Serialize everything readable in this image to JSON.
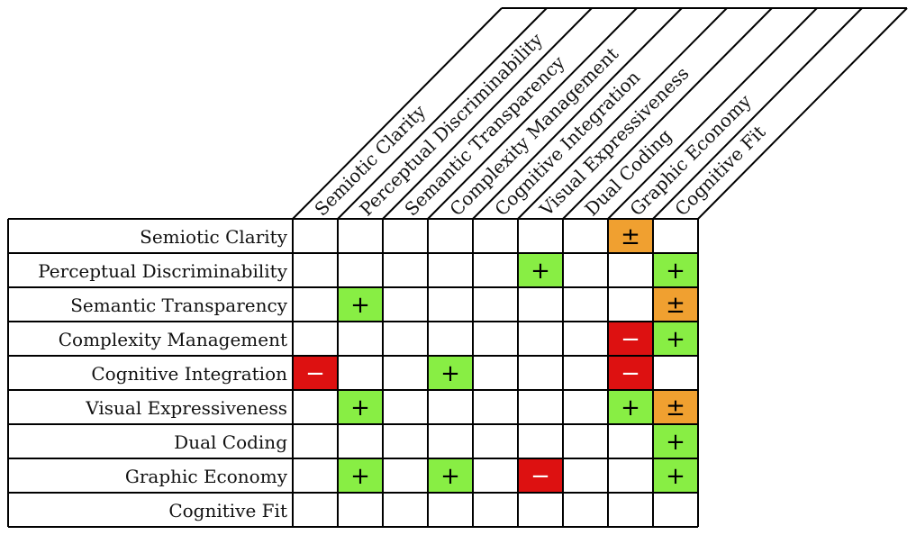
{
  "matrix": {
    "criteria": [
      "Semiotic Clarity",
      "Perceptual Discriminability",
      "Semantic Transparency",
      "Complexity Management",
      "Cognitive Integration",
      "Visual Expressiveness",
      "Dual Coding",
      "Graphic Economy",
      "Cognitive Fit"
    ],
    "cells": [
      {
        "row": 0,
        "col": 7,
        "symbol": "±",
        "type": "mixed"
      },
      {
        "row": 1,
        "col": 5,
        "symbol": "+",
        "type": "positive"
      },
      {
        "row": 1,
        "col": 8,
        "symbol": "+",
        "type": "positive"
      },
      {
        "row": 2,
        "col": 1,
        "symbol": "+",
        "type": "positive"
      },
      {
        "row": 2,
        "col": 8,
        "symbol": "±",
        "type": "mixed"
      },
      {
        "row": 3,
        "col": 7,
        "symbol": "−",
        "type": "negative"
      },
      {
        "row": 3,
        "col": 8,
        "symbol": "+",
        "type": "positive"
      },
      {
        "row": 4,
        "col": 0,
        "symbol": "−",
        "type": "negative"
      },
      {
        "row": 4,
        "col": 3,
        "symbol": "+",
        "type": "positive"
      },
      {
        "row": 4,
        "col": 7,
        "symbol": "−",
        "type": "negative"
      },
      {
        "row": 5,
        "col": 1,
        "symbol": "+",
        "type": "positive"
      },
      {
        "row": 5,
        "col": 7,
        "symbol": "+",
        "type": "positive"
      },
      {
        "row": 5,
        "col": 8,
        "symbol": "±",
        "type": "mixed"
      },
      {
        "row": 6,
        "col": 8,
        "symbol": "+",
        "type": "positive"
      },
      {
        "row": 7,
        "col": 1,
        "symbol": "+",
        "type": "positive"
      },
      {
        "row": 7,
        "col": 3,
        "symbol": "+",
        "type": "positive"
      },
      {
        "row": 7,
        "col": 5,
        "symbol": "−",
        "type": "negative"
      },
      {
        "row": 7,
        "col": 8,
        "symbol": "+",
        "type": "positive"
      }
    ],
    "colors": {
      "positive": "#88ee44",
      "mixed": "#f0a030",
      "negative": "#dd1111"
    }
  }
}
